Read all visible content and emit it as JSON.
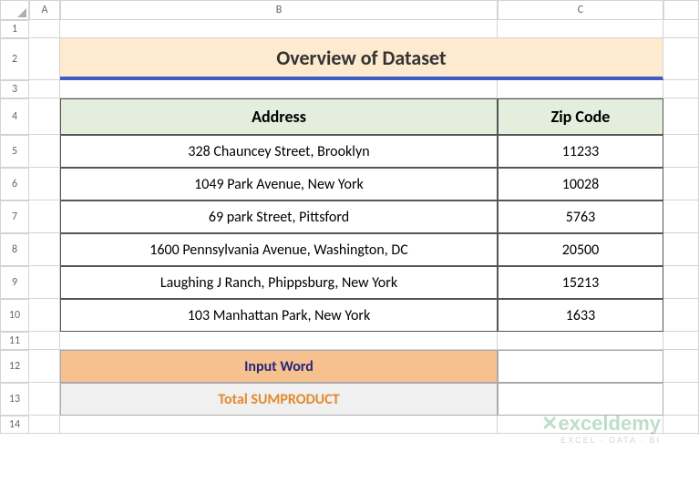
{
  "columns": {
    "A": "A",
    "B": "B",
    "C": "C"
  },
  "rows": [
    "1",
    "2",
    "3",
    "4",
    "5",
    "6",
    "7",
    "8",
    "9",
    "10",
    "11",
    "12",
    "13",
    "14"
  ],
  "title": "Overview of Dataset",
  "headers": {
    "address": "Address",
    "zip": "Zip Code"
  },
  "data": [
    {
      "address": "328 Chauncey Street, Brooklyn",
      "zip": "11233"
    },
    {
      "address": "1049 Park Avenue, New York",
      "zip": "10028"
    },
    {
      "address": "69 park Street, Pittsford",
      "zip": "5763"
    },
    {
      "address": "1600 Pennsylvania Avenue, Washington, DC",
      "zip": "20500"
    },
    {
      "address": "Laughing J Ranch, Phippsburg, New York",
      "zip": "15213"
    },
    {
      "address": "103 Manhattan Park, New York",
      "zip": "1633"
    }
  ],
  "input_label": "Input Word",
  "total_label": "Total SUMPRODUCT",
  "input_value": "",
  "total_value": "",
  "colors": {
    "title_bg": "#fdeacf",
    "title_underline": "#3d5cc4",
    "header_bg": "#e3eedc",
    "input_bg": "#f6c08f",
    "total_bg": "#f0f0f0",
    "input_text": "#28267a",
    "total_text": "#e28a2b",
    "grid_border": "#d4d4d4",
    "table_border": "#555555"
  },
  "watermark": {
    "main": "exceldemy",
    "sub": "EXCEL · DATA · BI"
  }
}
